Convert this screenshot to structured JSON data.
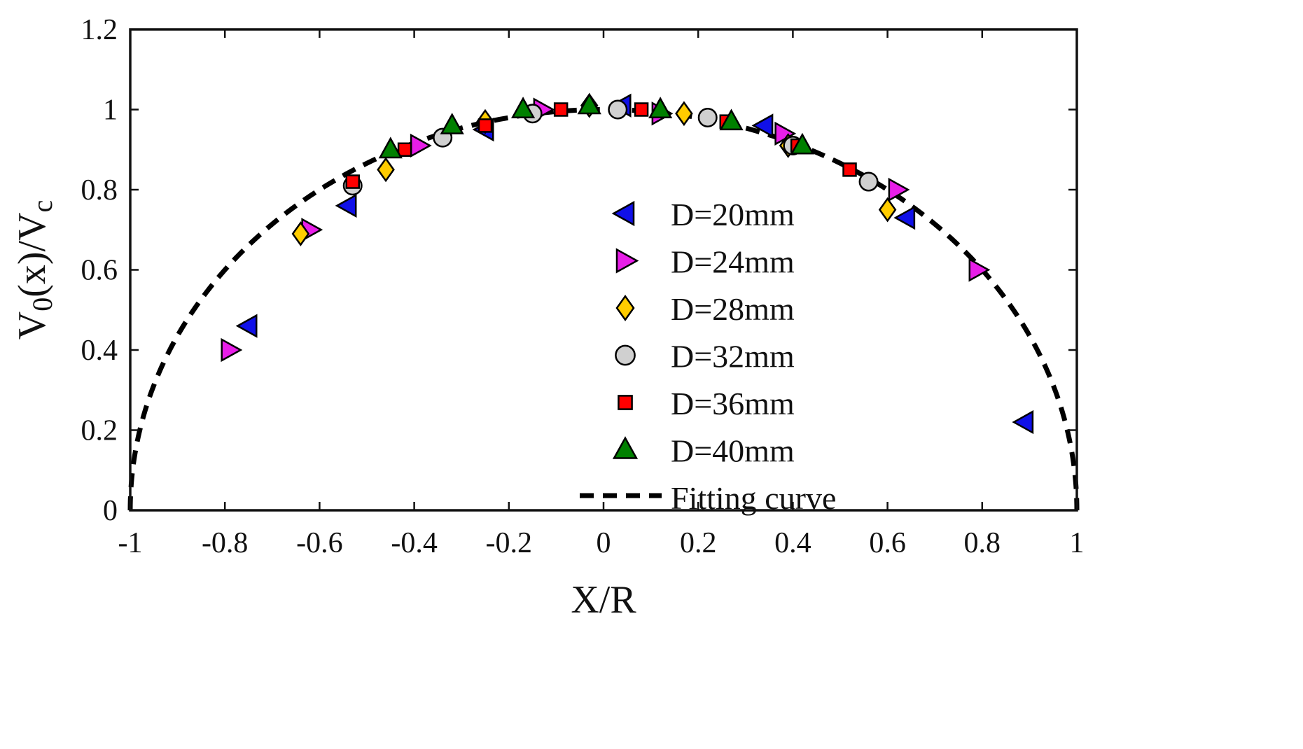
{
  "chart_data": {
    "type": "scatter",
    "xlabel": "X/R",
    "ylabel_parts": {
      "main": "V",
      "sub1": "0",
      "mid": "(x)/V",
      "sub2": "c"
    },
    "xlim": [
      -1,
      1
    ],
    "ylim": [
      0,
      1.2
    ],
    "x_ticks": [
      -1,
      -0.8,
      -0.6,
      -0.4,
      -0.2,
      0,
      0.2,
      0.4,
      0.6,
      0.8,
      1
    ],
    "x_tick_labels": [
      "-1",
      "-0.8",
      "-0.6",
      "-0.4",
      "-0.2",
      "0",
      "0.2",
      "0.4",
      "0.6",
      "0.8",
      "1"
    ],
    "y_ticks": [
      0,
      0.2,
      0.4,
      0.6,
      0.8,
      1,
      1.2
    ],
    "y_tick_labels": [
      "0",
      "0.2",
      "0.4",
      "0.6",
      "0.8",
      "1",
      "1.2"
    ],
    "grid": false,
    "legend_position": "center",
    "series": [
      {
        "name": "D=20mm",
        "marker": "triangle-left",
        "color": "#1010e8",
        "points": [
          [
            -0.75,
            0.46
          ],
          [
            -0.54,
            0.76
          ],
          [
            -0.25,
            0.95
          ],
          [
            0.04,
            1.01
          ],
          [
            0.34,
            0.96
          ],
          [
            0.64,
            0.73
          ],
          [
            0.89,
            0.22
          ]
        ]
      },
      {
        "name": "D=24mm",
        "marker": "triangle-right",
        "color": "#e81ee8",
        "points": [
          [
            -0.79,
            0.4
          ],
          [
            -0.62,
            0.7
          ],
          [
            -0.39,
            0.91
          ],
          [
            -0.13,
            1.0
          ],
          [
            0.12,
            0.99
          ],
          [
            0.38,
            0.94
          ],
          [
            0.62,
            0.8
          ],
          [
            0.79,
            0.6
          ]
        ]
      },
      {
        "name": "D=28mm",
        "marker": "diamond",
        "color": "#ffcc00",
        "points": [
          [
            -0.64,
            0.69
          ],
          [
            -0.46,
            0.85
          ],
          [
            -0.25,
            0.97
          ],
          [
            -0.03,
            1.01
          ],
          [
            0.17,
            0.99
          ],
          [
            0.39,
            0.91
          ],
          [
            0.6,
            0.75
          ]
        ]
      },
      {
        "name": "D=32mm",
        "marker": "circle",
        "color": "#d0d0d0",
        "points": [
          [
            -0.53,
            0.81
          ],
          [
            -0.34,
            0.93
          ],
          [
            -0.15,
            0.99
          ],
          [
            0.03,
            1.0
          ],
          [
            0.22,
            0.98
          ],
          [
            0.4,
            0.91
          ],
          [
            0.56,
            0.82
          ]
        ]
      },
      {
        "name": "D=36mm",
        "marker": "square",
        "color": "#ff0000",
        "points": [
          [
            -0.53,
            0.82
          ],
          [
            -0.42,
            0.9
          ],
          [
            -0.25,
            0.96
          ],
          [
            -0.09,
            1.0
          ],
          [
            0.08,
            1.0
          ],
          [
            0.26,
            0.97
          ],
          [
            0.41,
            0.91
          ],
          [
            0.52,
            0.85
          ]
        ]
      },
      {
        "name": "D=40mm",
        "marker": "triangle-up",
        "color": "#008000",
        "points": [
          [
            -0.45,
            0.9
          ],
          [
            -0.32,
            0.96
          ],
          [
            -0.17,
            1.0
          ],
          [
            -0.03,
            1.01
          ],
          [
            0.12,
            1.0
          ],
          [
            0.27,
            0.97
          ],
          [
            0.42,
            0.91
          ]
        ]
      }
    ],
    "fit": {
      "name": "Fitting curve",
      "type": "semicircle",
      "amplitude": 1.0,
      "x_range": [
        -1,
        1
      ]
    }
  }
}
